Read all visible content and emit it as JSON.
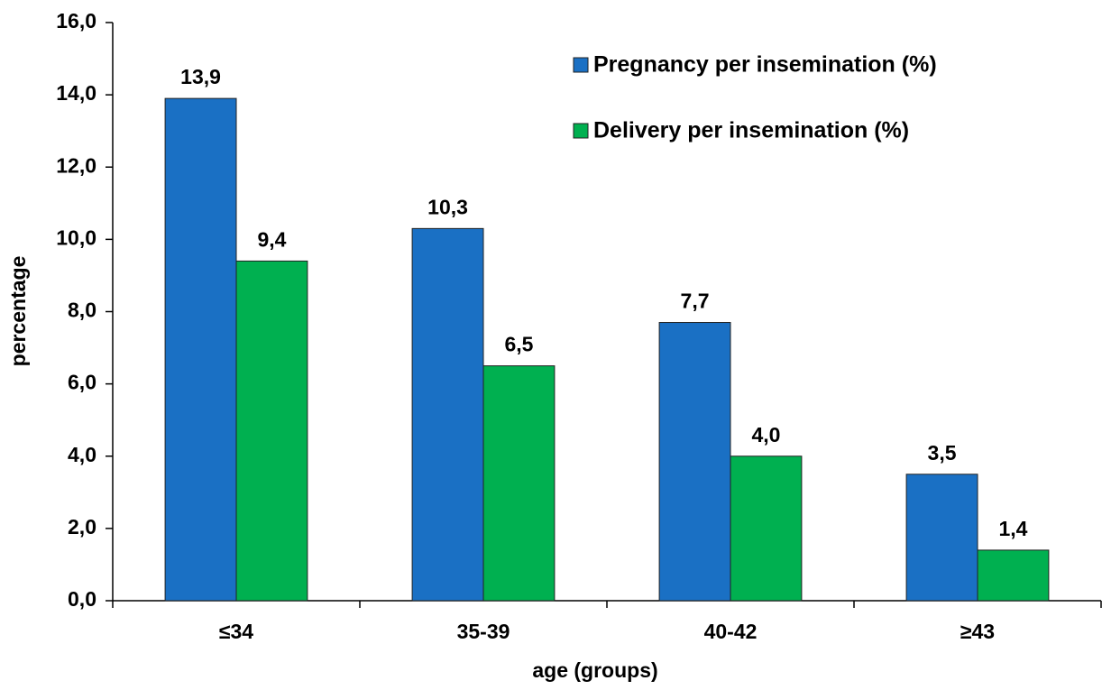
{
  "chart_data": {
    "type": "bar",
    "x_label": "age (groups)",
    "y_label": "percentage",
    "categories": [
      "≤34",
      "35-39",
      "40-42",
      "≥43"
    ],
    "series": [
      {
        "name": "Pregnancy per insemination (%)",
        "color": "#1a70c4",
        "values": [
          13.9,
          10.3,
          7.7,
          3.5
        ],
        "value_labels": [
          "13,9",
          "10,3",
          "7,7",
          "3,5"
        ]
      },
      {
        "name": "Delivery per insemination (%)",
        "color": "#00b050",
        "values": [
          9.4,
          6.5,
          4.0,
          1.4
        ],
        "value_labels": [
          "9,4",
          "6,5",
          "4,0",
          "1,4"
        ]
      }
    ],
    "ylim": [
      0,
      16
    ],
    "yticks": [
      {
        "value": 0,
        "label": "0,0"
      },
      {
        "value": 2,
        "label": "2,0"
      },
      {
        "value": 4,
        "label": "4,0"
      },
      {
        "value": 6,
        "label": "6,0"
      },
      {
        "value": 8,
        "label": "8,0"
      },
      {
        "value": 10,
        "label": "10,0"
      },
      {
        "value": 12,
        "label": "12,0"
      },
      {
        "value": 14,
        "label": "14,0"
      },
      {
        "value": 16,
        "label": "16,0"
      }
    ],
    "grid": false,
    "legend": "top-right"
  }
}
